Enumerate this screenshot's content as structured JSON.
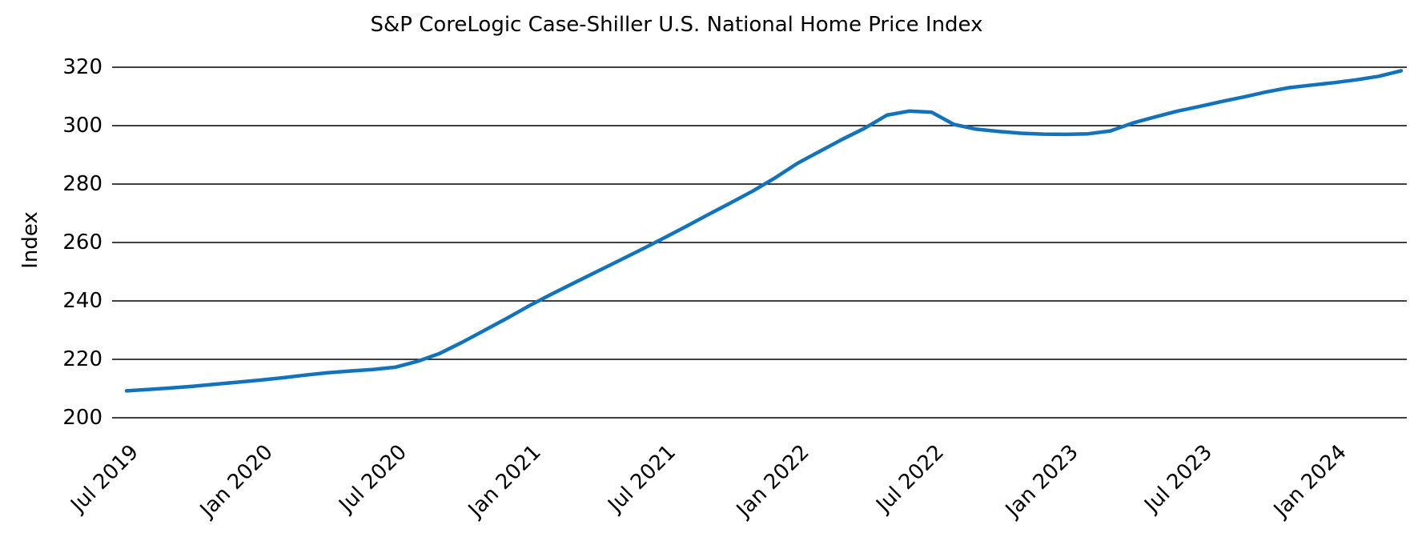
{
  "chart_data": {
    "type": "line",
    "title": "S&P CoreLogic Case-Shiller U.S. National Home Price Index",
    "ylabel": "Index",
    "x_tick_labels": [
      "Jul 2019",
      "Jan 2020",
      "Jul 2020",
      "Jan 2021",
      "Jul 2021",
      "Jan 2022",
      "Jul 2022",
      "Jan 2023",
      "Jul 2023",
      "Jan 2024"
    ],
    "x_tick_month_indices": [
      0,
      6,
      12,
      18,
      24,
      30,
      36,
      42,
      48,
      54
    ],
    "y_ticks": [
      320,
      300,
      280,
      260,
      240,
      220,
      200
    ],
    "ylim": [
      200,
      320
    ],
    "grid": "horizontal-black-lines",
    "legend": "none",
    "line_color": "#1272BC",
    "grid_color": "#000000",
    "text_color": "#000000",
    "background_color": "#FFFFFF",
    "series": [
      {
        "name": "S&P CoreLogic Case-Shiller U.S. National Home Price Index",
        "x": [
          "Jul 2019",
          "Aug 2019",
          "Sep 2019",
          "Oct 2019",
          "Nov 2019",
          "Dec 2019",
          "Jan 2020",
          "Feb 2020",
          "Mar 2020",
          "Apr 2020",
          "May 2020",
          "Jun 2020",
          "Jul 2020",
          "Aug 2020",
          "Sep 2020",
          "Oct 2020",
          "Nov 2020",
          "Dec 2020",
          "Jan 2021",
          "Feb 2021",
          "Mar 2021",
          "Apr 2021",
          "May 2021",
          "Jun 2021",
          "Jul 2021",
          "Aug 2021",
          "Sep 2021",
          "Oct 2021",
          "Nov 2021",
          "Dec 2021",
          "Jan 2022",
          "Feb 2022",
          "Mar 2022",
          "Apr 2022",
          "May 2022",
          "Jun 2022",
          "Jul 2022",
          "Aug 2022",
          "Sep 2022",
          "Oct 2022",
          "Nov 2022",
          "Dec 2022",
          "Jan 2023",
          "Feb 2023",
          "Mar 2023",
          "Apr 2023",
          "May 2023",
          "Jun 2023",
          "Jul 2023",
          "Aug 2023",
          "Sep 2023",
          "Oct 2023",
          "Nov 2023",
          "Dec 2023",
          "Jan 2024",
          "Feb 2024",
          "Mar 2024",
          "Apr 2024"
        ],
        "values": [
          209.2,
          209.7,
          210.2,
          210.8,
          211.5,
          212.2,
          212.9,
          213.7,
          214.6,
          215.4,
          216.0,
          216.5,
          217.3,
          219.3,
          222.0,
          225.8,
          229.9,
          234.0,
          238.3,
          242.3,
          246.1,
          249.9,
          253.7,
          257.5,
          261.4,
          265.4,
          269.5,
          273.5,
          277.6,
          282.1,
          287.1,
          291.2,
          295.3,
          299.1,
          303.6,
          305.0,
          304.6,
          300.4,
          298.8,
          298.0,
          297.4,
          297.1,
          297.0,
          297.2,
          298.2,
          300.9,
          303.0,
          305.0,
          306.6,
          308.3,
          309.9,
          311.6,
          313.0,
          313.9,
          314.7,
          315.7,
          316.9,
          318.8
        ]
      }
    ]
  }
}
